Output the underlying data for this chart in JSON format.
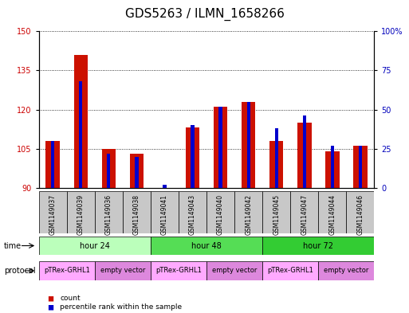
{
  "title": "GDS5263 / ILMN_1658266",
  "samples": [
    "GSM1149037",
    "GSM1149039",
    "GSM1149036",
    "GSM1149038",
    "GSM1149041",
    "GSM1149043",
    "GSM1149040",
    "GSM1149042",
    "GSM1149045",
    "GSM1149047",
    "GSM1149044",
    "GSM1149046"
  ],
  "counts": [
    108,
    141,
    105,
    103,
    90,
    113,
    121,
    123,
    108,
    115,
    104,
    106
  ],
  "percentile_ranks": [
    30,
    68,
    22,
    20,
    2,
    40,
    52,
    55,
    38,
    46,
    27,
    27
  ],
  "ylim_left": [
    90,
    150
  ],
  "ylim_right": [
    0,
    100
  ],
  "yticks_left": [
    90,
    105,
    120,
    135,
    150
  ],
  "yticks_right": [
    0,
    25,
    50,
    75,
    100
  ],
  "ylabel_left_color": "#cc0000",
  "ylabel_right_color": "#0000bb",
  "bar_color_red": "#cc1100",
  "bar_color_blue": "#0000cc",
  "time_groups": [
    {
      "label": "hour 24",
      "start": 0,
      "end": 4,
      "color": "#bbffbb"
    },
    {
      "label": "hour 48",
      "start": 4,
      "end": 8,
      "color": "#55dd55"
    },
    {
      "label": "hour 72",
      "start": 8,
      "end": 12,
      "color": "#33cc33"
    }
  ],
  "protocol_groups": [
    {
      "label": "pTRex-GRHL1",
      "start": 0,
      "end": 2,
      "color": "#ffaaff"
    },
    {
      "label": "empty vector",
      "start": 2,
      "end": 4,
      "color": "#dd88dd"
    },
    {
      "label": "pTRex-GRHL1",
      "start": 4,
      "end": 6,
      "color": "#ffaaff"
    },
    {
      "label": "empty vector",
      "start": 6,
      "end": 8,
      "color": "#dd88dd"
    },
    {
      "label": "pTRex-GRHL1",
      "start": 8,
      "end": 10,
      "color": "#ffaaff"
    },
    {
      "label": "empty vector",
      "start": 10,
      "end": 12,
      "color": "#dd88dd"
    }
  ],
  "legend_items": [
    {
      "label": "count",
      "color": "#cc1100"
    },
    {
      "label": "percentile rank within the sample",
      "color": "#0000cc"
    }
  ],
  "title_fontsize": 11,
  "tick_fontsize": 7,
  "sample_fontsize": 5.5,
  "row_fontsize": 7,
  "prot_fontsize": 6,
  "legend_fontsize": 6.5
}
